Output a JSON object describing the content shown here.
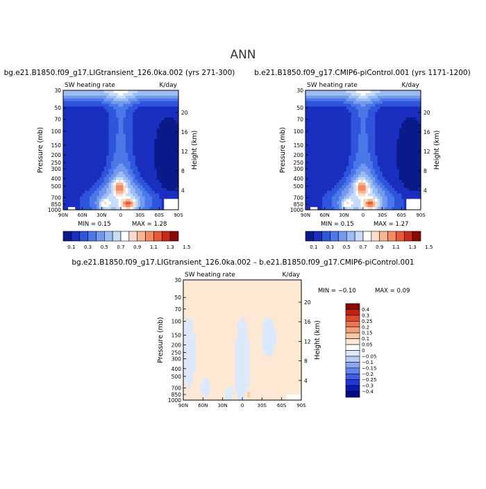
{
  "figure": {
    "title": "ANN"
  },
  "colors": {
    "upper_scale": [
      "#0a1a8a",
      "#1a2fc0",
      "#2f55dc",
      "#4a78e8",
      "#7399ee",
      "#9cbcf4",
      "#c6dcfa",
      "#ffffff",
      "#fbdccb",
      "#f7b592",
      "#f28a63",
      "#e85a36",
      "#c92a17",
      "#8a0a04"
    ],
    "diff_scale": [
      "#000a80",
      "#0a1ab4",
      "#2436d8",
      "#3f5ce6",
      "#6384ec",
      "#8aa8f2",
      "#b6cdf8",
      "#dce9fc",
      "#ffffff",
      "#fde8d4",
      "#f9c8a8",
      "#f3a07a",
      "#eb7452",
      "#de4a2c",
      "#c8200e",
      "#8c0600"
    ]
  },
  "chart_data": [
    {
      "type": "heatmap",
      "title": "bg.e21.B1850.f09_g17.LIGtransient_126.0ka.002 (yrs 271-300)",
      "subtitle_left": "SW heating rate",
      "subtitle_right": "K/day",
      "xlabel": "",
      "ylabel": "Pressure (mb)",
      "ylabel_right": "Height (km)",
      "x_ticks": [
        "90N",
        "60N",
        "30N",
        "0",
        "30S",
        "60S",
        "90S"
      ],
      "y_ticks": [
        "30",
        "50",
        "70",
        "100",
        "150",
        "200",
        "250",
        "300",
        "400",
        "500",
        "700",
        "850",
        "1000"
      ],
      "y_right_ticks": [
        "20",
        "16",
        "12",
        "8",
        "4"
      ],
      "min_text": "MIN =    0.15",
      "max_text": "MAX =    1.28",
      "min": 0.15,
      "max": 1.28,
      "colorbar_labels": [
        "0.1",
        "0.3",
        "0.5",
        "0.7",
        "0.9",
        "1.1",
        "1.3",
        "1.5"
      ],
      "contour_levels": [
        0.1,
        0.2,
        0.3,
        0.4,
        0.5,
        0.6,
        0.7,
        0.8,
        0.9,
        1.0,
        1.1,
        1.2,
        1.3,
        1.4,
        1.5
      ]
    },
    {
      "type": "heatmap",
      "title": "b.e21.B1850.f09_g17.CMIP6-piControl.001 (yrs 1171-1200)",
      "subtitle_left": "SW heating rate",
      "subtitle_right": "K/day",
      "xlabel": "",
      "ylabel": "Pressure (mb)",
      "ylabel_right": "Height (km)",
      "x_ticks": [
        "90N",
        "60N",
        "30N",
        "0",
        "30S",
        "60S",
        "90S"
      ],
      "y_ticks": [
        "30",
        "50",
        "70",
        "100",
        "150",
        "200",
        "250",
        "300",
        "400",
        "500",
        "700",
        "850",
        "1000"
      ],
      "y_right_ticks": [
        "20",
        "16",
        "12",
        "8",
        "4"
      ],
      "min_text": "MIN =    0.15",
      "max_text": "MAX =    1.27",
      "min": 0.15,
      "max": 1.27,
      "colorbar_labels": [
        "0.1",
        "0.3",
        "0.5",
        "0.7",
        "0.9",
        "1.1",
        "1.3",
        "1.5"
      ],
      "contour_levels": [
        0.1,
        0.2,
        0.3,
        0.4,
        0.5,
        0.6,
        0.7,
        0.8,
        0.9,
        1.0,
        1.1,
        1.2,
        1.3,
        1.4,
        1.5
      ]
    },
    {
      "type": "heatmap",
      "title": "bg.e21.B1850.f09_g17.LIGtransient_126.0ka.002 – b.e21.B1850.f09_g17.CMIP6-piControl.001",
      "subtitle_left": "SW heating rate",
      "subtitle_right": "K/day",
      "xlabel": "",
      "ylabel": "Pressure (mb)",
      "ylabel_right": "Height (km)",
      "x_ticks": [
        "90N",
        "60N",
        "30N",
        "0",
        "30S",
        "60S",
        "90S"
      ],
      "y_ticks": [
        "30",
        "50",
        "70",
        "100",
        "150",
        "200",
        "250",
        "300",
        "400",
        "500",
        "700",
        "850",
        "1000"
      ],
      "y_right_ticks": [
        "20",
        "16",
        "12",
        "8",
        "4"
      ],
      "min_text": "MIN =   −0.10",
      "max_text": "MAX =    0.09",
      "min": -0.1,
      "max": 0.09,
      "colorbar_labels": [
        "0.4",
        "0.3",
        "0.25",
        "0.2",
        "0.15",
        "0.1",
        "0.05",
        "0",
        "−0.05",
        "−0.1",
        "−0.15",
        "−0.2",
        "−0.25",
        "−0.3",
        "−0.4"
      ],
      "contour_levels": [
        -0.4,
        -0.3,
        -0.25,
        -0.2,
        -0.15,
        -0.1,
        -0.05,
        0,
        0.05,
        0.1,
        0.15,
        0.2,
        0.25,
        0.3,
        0.4
      ]
    }
  ]
}
